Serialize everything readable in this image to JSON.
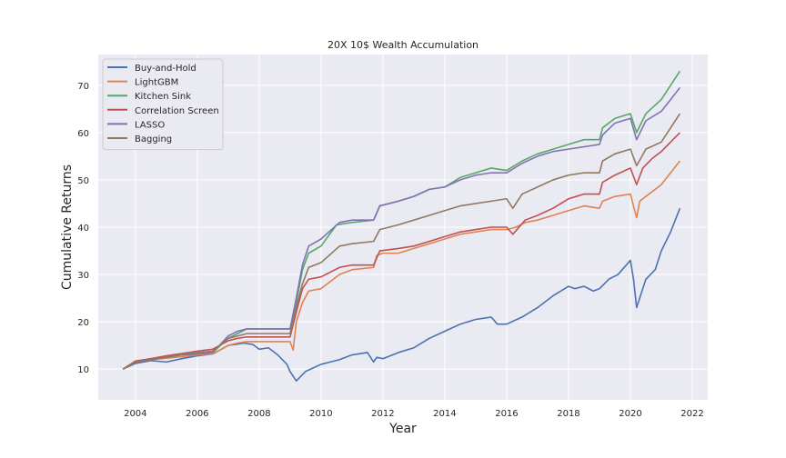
{
  "chart_data": {
    "type": "line",
    "title": "20X 10$ Wealth Accumulation",
    "xlabel": "Year",
    "ylabel": "Cumulative Returns",
    "xlim": [
      2002.8,
      2022.5
    ],
    "ylim": [
      3.5,
      76.5
    ],
    "x_ticks": [
      2004,
      2006,
      2008,
      2010,
      2012,
      2014,
      2016,
      2018,
      2020,
      2022
    ],
    "x_tick_labels": [
      "2004",
      "2006",
      "2008",
      "2010",
      "2012",
      "2014",
      "2016",
      "2018",
      "2020",
      "2022"
    ],
    "y_ticks": [
      10,
      20,
      30,
      40,
      50,
      60,
      70
    ],
    "y_tick_labels": [
      "10",
      "20",
      "30",
      "40",
      "50",
      "60",
      "70"
    ],
    "grid": true,
    "legend_position": "upper-left",
    "series": [
      {
        "name": "Buy-and-Hold",
        "color": "#4c72b0",
        "x": [
          2003.6,
          2004.0,
          2004.5,
          2005.0,
          2005.5,
          2006.0,
          2006.5,
          2007.0,
          2007.5,
          2007.8,
          2008.0,
          2008.3,
          2008.6,
          2008.9,
          2009.0,
          2009.2,
          2009.5,
          2010.0,
          2010.3,
          2010.6,
          2011.0,
          2011.5,
          2011.7,
          2011.8,
          2012.0,
          2012.5,
          2013.0,
          2013.5,
          2014.0,
          2014.5,
          2015.0,
          2015.5,
          2015.7,
          2016.0,
          2016.5,
          2017.0,
          2017.5,
          2018.0,
          2018.2,
          2018.5,
          2018.8,
          2019.0,
          2019.3,
          2019.6,
          2020.0,
          2020.1,
          2020.2,
          2020.5,
          2020.8,
          2021.0,
          2021.3,
          2021.6
        ],
        "values": [
          10,
          11.2,
          11.8,
          11.5,
          12.2,
          12.8,
          13.2,
          15,
          15.5,
          15.2,
          14.2,
          14.5,
          13,
          11,
          9.5,
          7.5,
          9.5,
          11,
          11.5,
          12,
          13,
          13.5,
          11.5,
          12.5,
          12.2,
          13.5,
          14.5,
          16.5,
          18,
          19.5,
          20.5,
          21,
          19.5,
          19.5,
          21,
          23,
          25.5,
          27.5,
          27,
          27.5,
          26.5,
          27,
          29,
          30,
          33,
          29,
          23,
          29,
          31,
          35,
          39,
          44
        ]
      },
      {
        "name": "LightGBM",
        "color": "#dd8452",
        "x": [
          2003.6,
          2004.0,
          2004.5,
          2005.0,
          2005.5,
          2006.0,
          2006.5,
          2007.0,
          2007.3,
          2007.6,
          2008.0,
          2008.5,
          2009.0,
          2009.1,
          2009.2,
          2009.4,
          2009.6,
          2010.0,
          2010.6,
          2011.0,
          2011.7,
          2011.8,
          2012.0,
          2012.5,
          2013.0,
          2013.5,
          2014.0,
          2014.5,
          2015.0,
          2015.5,
          2016.0,
          2016.3,
          2016.6,
          2017.0,
          2017.5,
          2018.0,
          2018.5,
          2019.0,
          2019.1,
          2019.5,
          2020.0,
          2020.2,
          2020.3,
          2020.6,
          2021.0,
          2021.3,
          2021.6
        ],
        "values": [
          10,
          11.5,
          12,
          12.3,
          12.6,
          13,
          13.2,
          15,
          15.5,
          15.8,
          15.8,
          15.8,
          15.8,
          14,
          20,
          24,
          26.5,
          27,
          30,
          31,
          31.5,
          34,
          34.5,
          34.5,
          35.5,
          36.5,
          37.5,
          38.5,
          39,
          39.5,
          39.5,
          40,
          41,
          41.5,
          42.5,
          43.5,
          44.5,
          44,
          45.5,
          46.5,
          47,
          42,
          45.5,
          47,
          49,
          51.5,
          54
        ]
      },
      {
        "name": "Kitchen Sink",
        "color": "#55a868",
        "x": [
          2003.6,
          2004.0,
          2004.5,
          2005.0,
          2005.5,
          2006.0,
          2006.5,
          2007.0,
          2007.3,
          2007.6,
          2008.0,
          2008.5,
          2009.0,
          2009.2,
          2009.4,
          2009.6,
          2010.0,
          2010.5,
          2011.0,
          2011.7,
          2011.9,
          2012.5,
          2013.0,
          2013.5,
          2014.0,
          2014.5,
          2015.0,
          2015.5,
          2016.0,
          2016.5,
          2017.0,
          2017.5,
          2018.0,
          2018.5,
          2019.0,
          2019.1,
          2019.5,
          2020.0,
          2020.2,
          2020.5,
          2021.0,
          2021.3,
          2021.6
        ],
        "values": [
          10,
          11.5,
          12,
          12.5,
          13,
          13.2,
          13.5,
          16.5,
          17.5,
          18.5,
          18.5,
          18.5,
          18.5,
          24,
          31,
          34.5,
          36,
          40.5,
          41,
          41.5,
          44.5,
          45.5,
          46.5,
          48,
          48.5,
          50.5,
          51.5,
          52.5,
          52,
          54,
          55.5,
          56.5,
          57.5,
          58.5,
          58.5,
          61,
          63,
          64,
          60,
          64,
          67,
          70,
          73
        ]
      },
      {
        "name": "Correlation Screen",
        "color": "#c44e52",
        "x": [
          2003.6,
          2004.0,
          2004.5,
          2005.0,
          2005.5,
          2006.0,
          2006.5,
          2007.0,
          2007.3,
          2007.6,
          2008.0,
          2008.5,
          2009.0,
          2009.2,
          2009.4,
          2009.6,
          2010.0,
          2010.6,
          2011.0,
          2011.7,
          2011.9,
          2012.5,
          2013.0,
          2013.5,
          2014.0,
          2014.5,
          2015.0,
          2015.5,
          2016.0,
          2016.2,
          2016.6,
          2017.0,
          2017.5,
          2018.0,
          2018.5,
          2019.0,
          2019.1,
          2019.5,
          2020.0,
          2020.2,
          2020.4,
          2020.7,
          2021.0,
          2021.3,
          2021.6
        ],
        "values": [
          10,
          11.7,
          12.2,
          12.8,
          13.3,
          13.8,
          14.2,
          16,
          16.5,
          16.8,
          16.8,
          16.8,
          16.8,
          22,
          27,
          29,
          29.5,
          31.5,
          32,
          32,
          35,
          35.5,
          36,
          37,
          38,
          39,
          39.5,
          40,
          40,
          38.5,
          41.5,
          42.5,
          44,
          46,
          47,
          47,
          49.5,
          51,
          52.5,
          49,
          52.5,
          54.5,
          56,
          58,
          60
        ]
      },
      {
        "name": "LASSO",
        "color": "#8172b3",
        "x": [
          2003.6,
          2004.0,
          2004.5,
          2005.0,
          2005.5,
          2006.0,
          2006.5,
          2007.0,
          2007.3,
          2007.6,
          2008.0,
          2008.5,
          2009.0,
          2009.2,
          2009.4,
          2009.6,
          2010.0,
          2010.6,
          2011.0,
          2011.7,
          2011.9,
          2012.5,
          2013.0,
          2013.5,
          2014.0,
          2014.5,
          2015.0,
          2015.5,
          2016.0,
          2016.5,
          2017.0,
          2017.5,
          2018.0,
          2018.5,
          2019.0,
          2019.1,
          2019.5,
          2020.0,
          2020.2,
          2020.5,
          2021.0,
          2021.3,
          2021.6
        ],
        "values": [
          10,
          11.5,
          12,
          12.5,
          13,
          13.2,
          13.5,
          17,
          18,
          18.5,
          18.5,
          18.5,
          18.5,
          25,
          32,
          36,
          37.5,
          41,
          41.5,
          41.5,
          44.5,
          45.5,
          46.5,
          48,
          48.5,
          50,
          51,
          51.5,
          51.5,
          53.5,
          55,
          56,
          56.5,
          57,
          57.5,
          59.5,
          62,
          63,
          58.5,
          62.5,
          64.5,
          67,
          69.5
        ]
      },
      {
        "name": "Bagging",
        "color": "#937860",
        "x": [
          2003.6,
          2004.0,
          2004.5,
          2005.0,
          2005.5,
          2006.0,
          2006.5,
          2007.0,
          2007.3,
          2007.6,
          2008.0,
          2008.5,
          2009.0,
          2009.2,
          2009.4,
          2009.6,
          2010.0,
          2010.6,
          2011.0,
          2011.7,
          2011.9,
          2012.5,
          2013.0,
          2013.5,
          2014.0,
          2014.5,
          2015.0,
          2015.5,
          2016.0,
          2016.2,
          2016.5,
          2017.0,
          2017.5,
          2018.0,
          2018.5,
          2019.0,
          2019.1,
          2019.5,
          2020.0,
          2020.2,
          2020.5,
          2021.0,
          2021.3,
          2021.6
        ],
        "values": [
          10,
          11.5,
          12,
          12.5,
          13,
          13.5,
          13.8,
          16.5,
          17,
          17.5,
          17.5,
          17.5,
          17.5,
          23,
          28,
          31.5,
          32.5,
          36,
          36.5,
          37,
          39.5,
          40.5,
          41.5,
          42.5,
          43.5,
          44.5,
          45,
          45.5,
          46,
          44,
          47,
          48.5,
          50,
          51,
          51.5,
          51.5,
          54,
          55.5,
          56.5,
          53,
          56.5,
          58,
          61,
          64
        ]
      }
    ]
  }
}
